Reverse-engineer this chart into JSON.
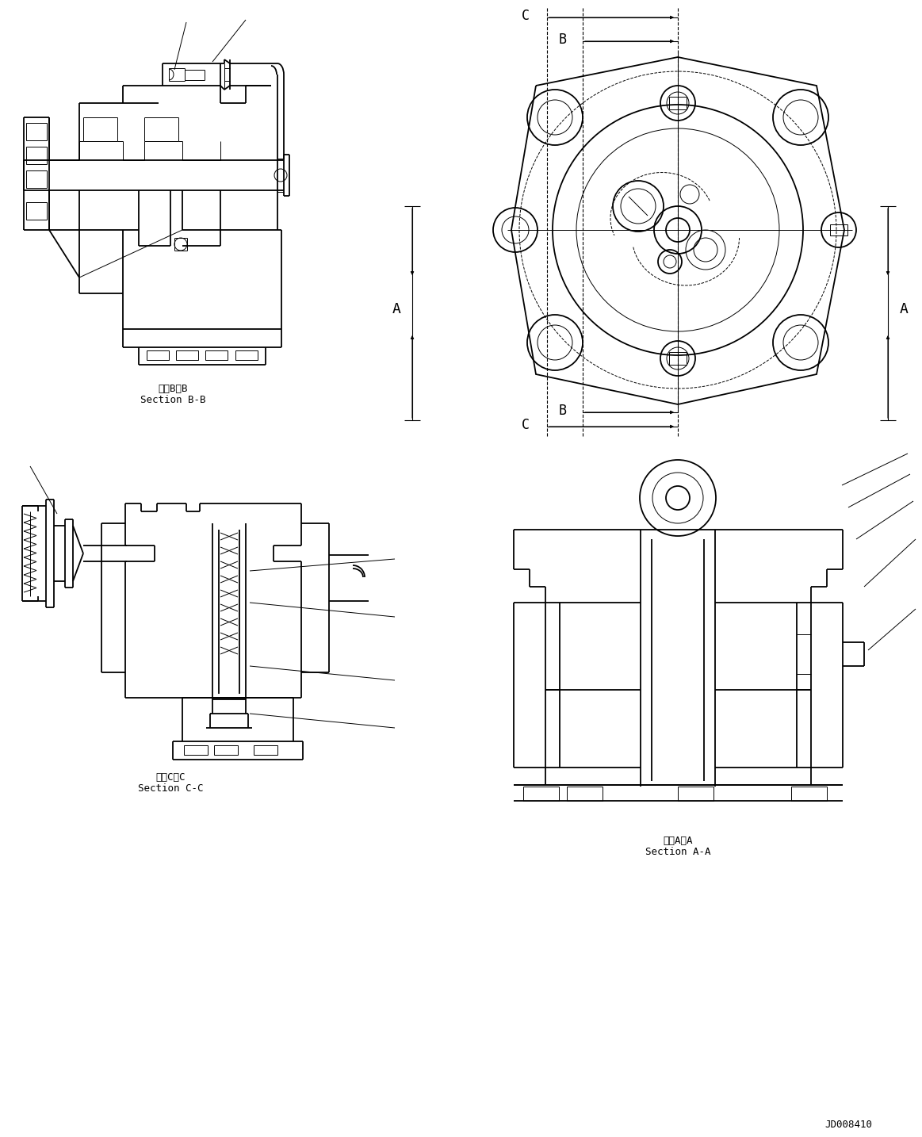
{
  "bg": "#ffffff",
  "lc": "#000000",
  "lw": 1.3,
  "tlw": 0.7,
  "dlw": 0.8,
  "label_bb_jp": "断面B－B",
  "label_bb_en": "Section B-B",
  "label_cc_jp": "断面C－C",
  "label_cc_en": "Section C-C",
  "label_aa_jp": "断面A－A",
  "label_aa_en": "Section A-A",
  "drawing_id": "JD008410"
}
